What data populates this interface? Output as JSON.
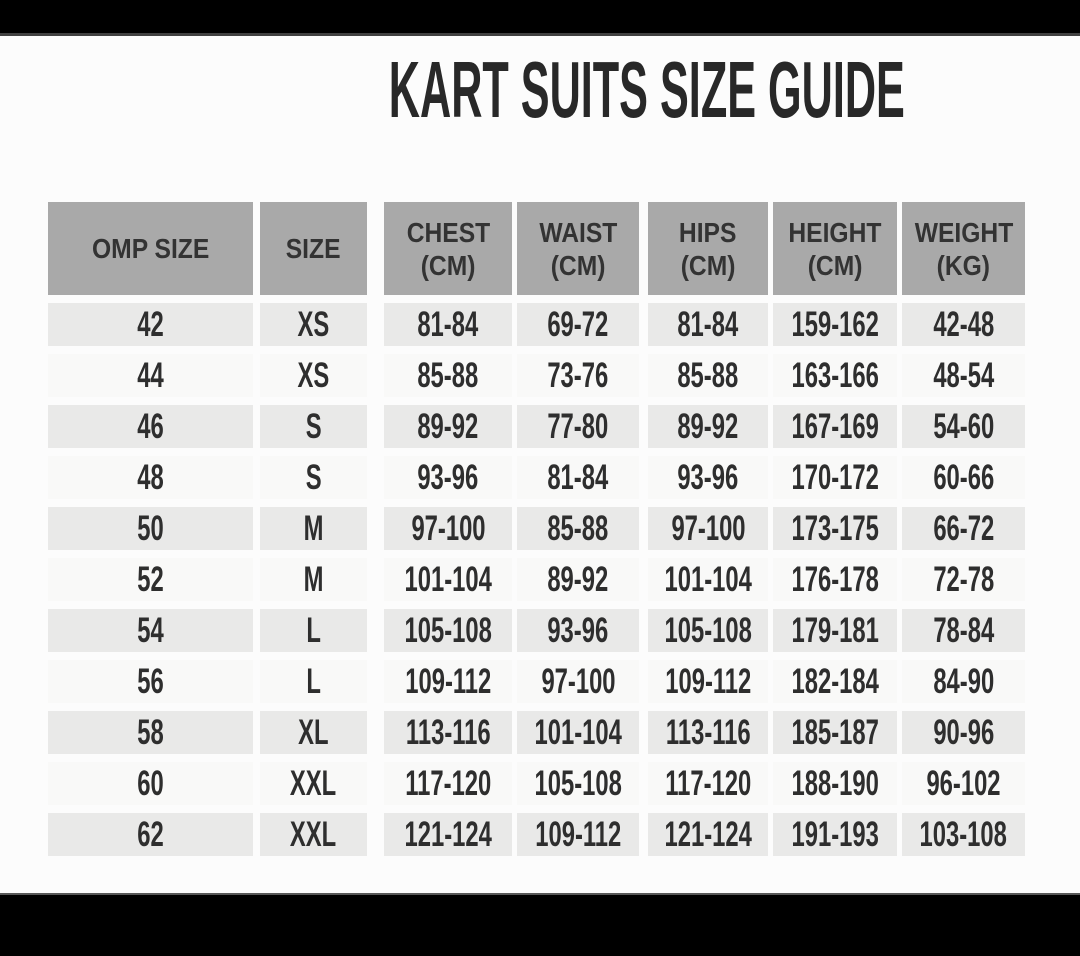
{
  "page": {
    "title": "KART SUITS SIZE GUIDE"
  },
  "size_table": {
    "headers": [
      {
        "line1": "OMP SIZE",
        "line2": ""
      },
      {
        "line1": "SIZE",
        "line2": ""
      },
      {
        "line1": "CHEST",
        "line2": "(CM)"
      },
      {
        "line1": "WAIST",
        "line2": "(CM)"
      },
      {
        "line1": "HIPS",
        "line2": "(CM)"
      },
      {
        "line1": "HEIGHT",
        "line2": "(CM)"
      },
      {
        "line1": "WEIGHT",
        "line2": "(KG)"
      }
    ],
    "rows": [
      [
        "42",
        "XS",
        "81-84",
        "69-72",
        "81-84",
        "159-162",
        "42-48"
      ],
      [
        "44",
        "XS",
        "85-88",
        "73-76",
        "85-88",
        "163-166",
        "48-54"
      ],
      [
        "46",
        "S",
        "89-92",
        "77-80",
        "89-92",
        "167-169",
        "54-60"
      ],
      [
        "48",
        "S",
        "93-96",
        "81-84",
        "93-96",
        "170-172",
        "60-66"
      ],
      [
        "50",
        "M",
        "97-100",
        "85-88",
        "97-100",
        "173-175",
        "66-72"
      ],
      [
        "52",
        "M",
        "101-104",
        "89-92",
        "101-104",
        "176-178",
        "72-78"
      ],
      [
        "54",
        "L",
        "105-108",
        "93-96",
        "105-108",
        "179-181",
        "78-84"
      ],
      [
        "56",
        "L",
        "109-112",
        "97-100",
        "109-112",
        "182-184",
        "84-90"
      ],
      [
        "58",
        "XL",
        "113-116",
        "101-104",
        "113-116",
        "185-187",
        "90-96"
      ],
      [
        "60",
        "XXL",
        "117-120",
        "105-108",
        "117-120",
        "188-190",
        "96-102"
      ],
      [
        "62",
        "XXL",
        "121-124",
        "109-112",
        "121-124",
        "191-193",
        "103-108"
      ]
    ]
  },
  "chart_data": {
    "type": "table",
    "title": "KART SUITS SIZE GUIDE",
    "columns": [
      "OMP SIZE",
      "SIZE",
      "CHEST (CM)",
      "WAIST (CM)",
      "HIPS (CM)",
      "HEIGHT (CM)",
      "WEIGHT (KG)"
    ],
    "rows": [
      [
        "42",
        "XS",
        "81-84",
        "69-72",
        "81-84",
        "159-162",
        "42-48"
      ],
      [
        "44",
        "XS",
        "85-88",
        "73-76",
        "85-88",
        "163-166",
        "48-54"
      ],
      [
        "46",
        "S",
        "89-92",
        "77-80",
        "89-92",
        "167-169",
        "54-60"
      ],
      [
        "48",
        "S",
        "93-96",
        "81-84",
        "93-96",
        "170-172",
        "60-66"
      ],
      [
        "50",
        "M",
        "97-100",
        "85-88",
        "97-100",
        "173-175",
        "66-72"
      ],
      [
        "52",
        "M",
        "101-104",
        "89-92",
        "101-104",
        "176-178",
        "72-78"
      ],
      [
        "54",
        "L",
        "105-108",
        "93-96",
        "105-108",
        "179-181",
        "78-84"
      ],
      [
        "56",
        "L",
        "109-112",
        "97-100",
        "109-112",
        "182-184",
        "84-90"
      ],
      [
        "58",
        "XL",
        "113-116",
        "101-104",
        "113-116",
        "185-187",
        "90-96"
      ],
      [
        "60",
        "XXL",
        "117-120",
        "105-108",
        "117-120",
        "188-190",
        "96-102"
      ],
      [
        "62",
        "XXL",
        "121-124",
        "109-112",
        "121-124",
        "191-193",
        "103-108"
      ]
    ]
  },
  "colors": {
    "header_bg": "#a9a9a9",
    "row_gray_bg": "#e9e9e8",
    "row_light_bg": "#f9f9f8",
    "text_dark": "#2e2e2e",
    "letterbox_black": "#000000",
    "page_bg": "#fcfcfc"
  }
}
